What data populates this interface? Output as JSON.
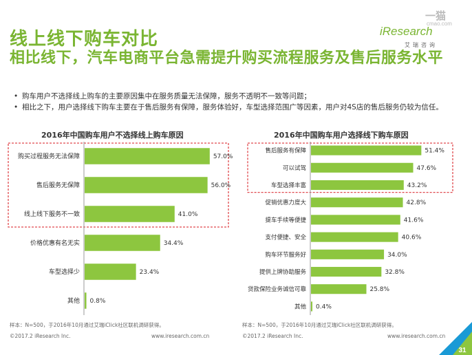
{
  "header": {
    "title": "线上线下购车对比",
    "subtitle": "相比线下，汽车电商平台急需提升购买流程服务及售后服务水平",
    "logo": "iResearch",
    "logo_sub": "艾瑞咨询",
    "watermark": "一猫",
    "watermark_sub": "cmao.com"
  },
  "bullets": [
    "购车用户不选择线上购车的主要原因集中在服务质量无法保障，服务不透明不一致等问题；",
    "相比之下，用户选择线下购车主要在于售后服务有保障，服务体验好，车型选择范围广等因素，用户对4S店的售后服务仍较为信任。"
  ],
  "chart_data": [
    {
      "type": "bar",
      "title": "2016年中国购车用户不选择线上购车原因",
      "categories": [
        "购买过程服务无法保障",
        "售后服务无保障",
        "线上线下服务不一致",
        "价格优惠有名无实",
        "车型选择少",
        "其他"
      ],
      "values": [
        57.0,
        56.0,
        41.0,
        34.4,
        23.4,
        0.8
      ],
      "value_labels": [
        "57.0%",
        "56.0%",
        "41.0%",
        "34.4%",
        "23.4%",
        "0.8%"
      ],
      "orientation": "horizontal",
      "highlighted": [
        0,
        1,
        2
      ],
      "color": "#8dc63f",
      "note": "样本：N=500，于2016年10月通过艾瑞iClick社区联机调研获得。",
      "copyright": "©2017.2 iResearch Inc.",
      "site": "www.iresearch.com.cn"
    },
    {
      "type": "bar",
      "title": "2016年中国购车用户选择线下购车原因",
      "categories": [
        "售后服务有保障",
        "可以试驾",
        "车型选择丰富",
        "促销优惠力度大",
        "提车手续等便捷",
        "支付便捷、安全",
        "购车环节服务好",
        "提供上牌协助服务",
        "贷款保险业务诚信可靠",
        "其他"
      ],
      "values": [
        51.4,
        47.6,
        43.2,
        42.8,
        41.6,
        40.6,
        34.0,
        32.8,
        25.8,
        0.4
      ],
      "value_labels": [
        "51.4%",
        "47.6%",
        "43.2%",
        "42.8%",
        "41.6%",
        "40.6%",
        "34.0%",
        "32.8%",
        "25.8%",
        "0.4%"
      ],
      "orientation": "horizontal",
      "highlighted": [
        0,
        1,
        2
      ],
      "color": "#8dc63f",
      "note": "样本：N=500，于2016年10月通过艾瑞iClick社区联机调研获得。",
      "copyright": "©2017.2 iResearch Inc.",
      "site": "www.iresearch.com.cn"
    }
  ],
  "page_number": "31",
  "colors": {
    "accent": "#7ab532",
    "bar": "#8dc63f",
    "highlight_box": "#e0474c",
    "corner_blue": "#1a9ad6"
  }
}
